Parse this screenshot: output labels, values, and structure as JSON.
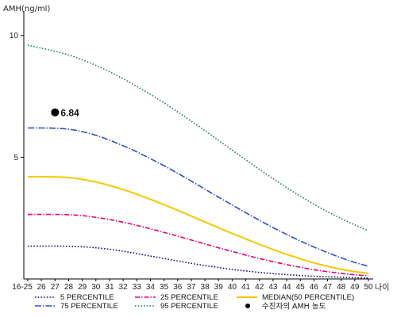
{
  "chart_data": {
    "type": "line",
    "ylabel": "AMH(ng/ml)",
    "xlabel": "나이",
    "categories": [
      "16-25",
      "26",
      "27",
      "28",
      "29",
      "30",
      "31",
      "32",
      "33",
      "34",
      "35",
      "36",
      "37",
      "38",
      "39",
      "40",
      "41",
      "42",
      "43",
      "44",
      "45",
      "46",
      "47",
      "48",
      "49",
      "50"
    ],
    "yticks": [
      5,
      10
    ],
    "ylim": [
      0,
      11
    ],
    "series": [
      {
        "name": "5 PERCENTILE",
        "color": "#000080",
        "dash": "1.5 2.2",
        "values": [
          1.35,
          1.35,
          1.35,
          1.34,
          1.32,
          1.28,
          1.22,
          1.14,
          1.04,
          0.94,
          0.84,
          0.74,
          0.64,
          0.55,
          0.47,
          0.39,
          0.33,
          0.27,
          0.22,
          0.18,
          0.14,
          0.11,
          0.09,
          0.07,
          0.05,
          0.04
        ]
      },
      {
        "name": "25 PERCENTILE",
        "color": "#e6007e",
        "dash": "6 2 1.5 2",
        "values": [
          2.65,
          2.65,
          2.65,
          2.64,
          2.6,
          2.53,
          2.44,
          2.33,
          2.2,
          2.06,
          1.91,
          1.76,
          1.6,
          1.44,
          1.28,
          1.13,
          0.98,
          0.84,
          0.71,
          0.59,
          0.48,
          0.38,
          0.3,
          0.23,
          0.17,
          0.13
        ]
      },
      {
        "name": "MEDIAN(50 PERCENTILE)",
        "color": "#f5c800",
        "dash": "",
        "values": [
          4.2,
          4.2,
          4.19,
          4.16,
          4.09,
          3.98,
          3.84,
          3.67,
          3.48,
          3.27,
          3.05,
          2.82,
          2.58,
          2.34,
          2.1,
          1.87,
          1.64,
          1.42,
          1.21,
          1.01,
          0.83,
          0.66,
          0.52,
          0.4,
          0.3,
          0.23
        ]
      },
      {
        "name": "75 PERCENTILE",
        "color": "#2e4fc4",
        "dash": "8 2 1.5 2",
        "values": [
          6.2,
          6.2,
          6.19,
          6.15,
          6.05,
          5.9,
          5.7,
          5.47,
          5.22,
          4.94,
          4.65,
          4.34,
          4.02,
          3.69,
          3.36,
          3.04,
          2.72,
          2.41,
          2.11,
          1.83,
          1.56,
          1.31,
          1.08,
          0.87,
          0.68,
          0.52
        ]
      },
      {
        "name": "95 PERCENTILE",
        "color": "#1a7a4a",
        "dash": "1.5 2.2",
        "values": [
          9.6,
          9.48,
          9.35,
          9.2,
          9.0,
          8.77,
          8.51,
          8.22,
          7.91,
          7.58,
          7.23,
          6.86,
          6.48,
          6.09,
          5.69,
          5.29,
          4.89,
          4.5,
          4.12,
          3.75,
          3.4,
          3.07,
          2.76,
          2.48,
          2.22,
          1.98
        ]
      }
    ],
    "marker": {
      "name": "수진자의 AMH 농도",
      "x": "27",
      "value": 6.84,
      "label": "6.84",
      "color": "#000000"
    }
  }
}
